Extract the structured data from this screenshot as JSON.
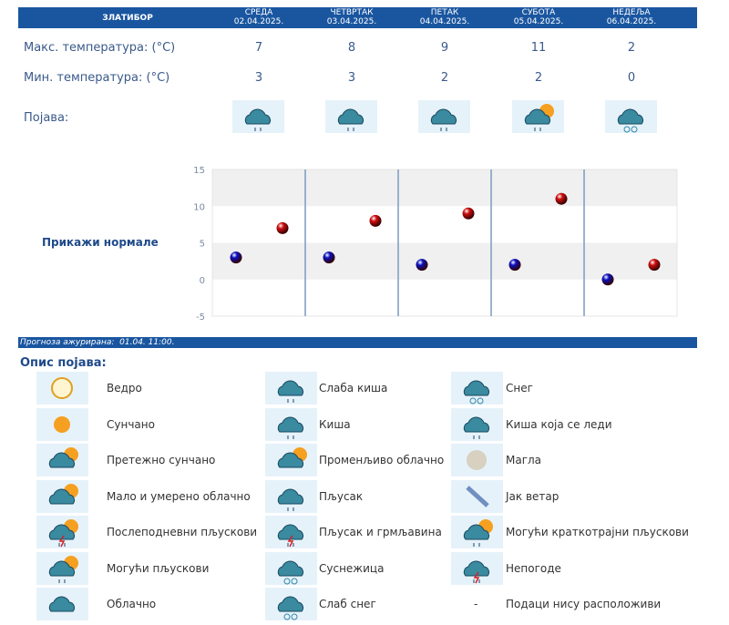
{
  "header": {
    "location": "ЗЛАТИБОР",
    "days": [
      {
        "name": "СРЕДА",
        "date": "02.04.2025."
      },
      {
        "name": "ЧЕТВРТАК",
        "date": "03.04.2025."
      },
      {
        "name": "ПЕТАК",
        "date": "04.04.2025."
      },
      {
        "name": "СУБОТА",
        "date": "05.04.2025."
      },
      {
        "name": "НЕДЕЉА",
        "date": "06.04.2025."
      }
    ]
  },
  "rows": {
    "max_label": "Макс. температура: (°C)",
    "min_label": "Мин. температура: (°C)",
    "phen_label": "Појава:",
    "max": [
      "7",
      "8",
      "9",
      "11",
      "2"
    ],
    "min": [
      "3",
      "3",
      "2",
      "2",
      "0"
    ],
    "icons": [
      "light-rain-icon",
      "rain-icon",
      "light-rain-icon",
      "partly-cloudy-rain-icon",
      "snow-icon"
    ]
  },
  "show_normals": "Прикажи нормале",
  "chart_data": {
    "type": "scatter",
    "ylim": [
      -5,
      15
    ],
    "yticks": [
      "15",
      "10",
      "5",
      "0",
      "-5"
    ],
    "grid": true,
    "categories": [
      "02.04.2025.",
      "03.04.2025.",
      "04.04.2025.",
      "05.04.2025.",
      "06.04.2025."
    ],
    "series": [
      {
        "values": [
          3,
          3,
          2,
          2,
          0
        ],
        "color": "#0a10c0"
      },
      {
        "values": [
          7,
          8,
          9,
          11,
          2
        ],
        "color": "#d01010"
      }
    ]
  },
  "updated": "Прогноза ажурирана:  01.04. 11:00.",
  "legend_title": "Опис појава:",
  "legend": [
    [
      {
        "icon": "clear-icon",
        "label": "Ведро"
      },
      {
        "icon": "light-rain-icon",
        "label": "Слаба киша"
      },
      {
        "icon": "snow-icon",
        "label": "Снег"
      }
    ],
    [
      {
        "icon": "sunny-icon",
        "label": "Сунчано"
      },
      {
        "icon": "rain-icon",
        "label": "Киша"
      },
      {
        "icon": "freezing-rain-icon",
        "label": "Киша која се леди"
      }
    ],
    [
      {
        "icon": "mostly-sunny-icon",
        "label": "Претежно сунчано"
      },
      {
        "icon": "variable-cloudy-icon",
        "label": "Променљиво облачно"
      },
      {
        "icon": "fog-icon",
        "label": "Магла"
      }
    ],
    [
      {
        "icon": "partly-cloudy-icon",
        "label": "Мало и умерено облачно"
      },
      {
        "icon": "shower-icon",
        "label": "Пљусак"
      },
      {
        "icon": "strong-wind-icon",
        "label": "Јак ветар"
      }
    ],
    [
      {
        "icon": "afternoon-showers-icon",
        "label": "Послеподневни пљускови"
      },
      {
        "icon": "thunderstorm-icon",
        "label": "Пљусак и грмљавина"
      },
      {
        "icon": "brief-showers-icon",
        "label": "Могући краткотрајни пљускови"
      }
    ],
    [
      {
        "icon": "possible-showers-icon",
        "label": "Могући пљускови"
      },
      {
        "icon": "sleet-icon",
        "label": "Суснежица"
      },
      {
        "icon": "storm-icon",
        "label": "Непогоде"
      }
    ],
    [
      {
        "icon": "cloudy-icon",
        "label": "Облачно"
      },
      {
        "icon": "light-snow-icon",
        "label": "Слаб снег"
      },
      {
        "icon": "none",
        "label": "Подаци нису расположиви",
        "symbol": "-"
      }
    ]
  ]
}
